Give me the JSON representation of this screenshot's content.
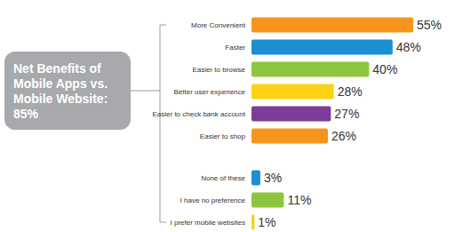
{
  "chart_data": {
    "type": "bar",
    "orientation": "horizontal",
    "title": "Net Benefits of Mobile Apps vs. Mobile Website: 85%",
    "categories": [
      "More Convenient",
      "Faster",
      "Easier to browse",
      "Better user experience",
      "Easier to check bank account",
      "Easier to shop",
      "None of these",
      "I have no preference",
      "I prefer mobile websites"
    ],
    "values": [
      55,
      48,
      40,
      28,
      27,
      26,
      3,
      11,
      1
    ],
    "value_labels": [
      "55%",
      "48%",
      "40%",
      "28%",
      "27%",
      "26%",
      "3%",
      "11%",
      "1%"
    ],
    "colors": [
      "#f7941d",
      "#1b8fd2",
      "#8dc63f",
      "#fcd116",
      "#7d3c98",
      "#f7941d",
      "#1b8fd2",
      "#8dc63f",
      "#fcd116"
    ],
    "xlim": [
      0,
      60
    ],
    "data_labels": true,
    "tick_labels": "y",
    "grid": false
  }
}
